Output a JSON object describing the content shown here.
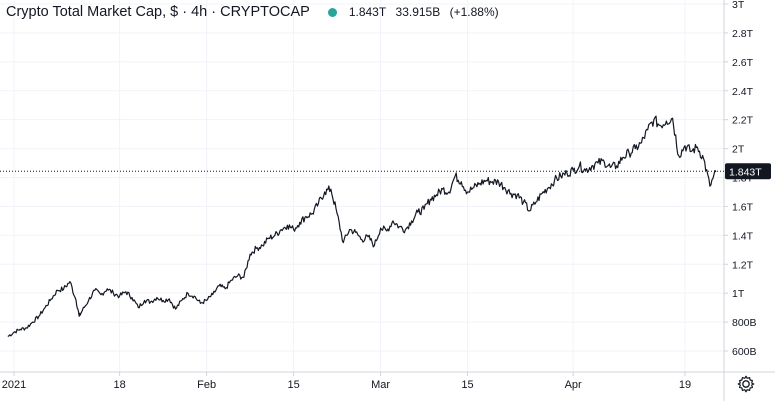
{
  "header": {
    "title": "Crypto Total Market Cap, $ · 4h · CRYPTOCAP",
    "status_color": "#26a69a",
    "last_value": "1.843T",
    "change_abs": "33.915B",
    "change_pct": "(+1.88%)"
  },
  "price_tag": {
    "label": "1.843T",
    "color": "#131722"
  },
  "settings_icon": "gear-icon",
  "colors": {
    "line": "#131722",
    "grid": "#f0f3fa",
    "axis_border": "#d1d4dc"
  },
  "chart_data": {
    "type": "line",
    "title": "Crypto Total Market Cap, $ · 4h · CRYPTOCAP",
    "xlabel": "",
    "ylabel": "",
    "x_tick_labels": [
      {
        "label": "2021",
        "date": "2021-01-01"
      },
      {
        "label": "18",
        "date": "2021-01-18"
      },
      {
        "label": "Feb",
        "date": "2021-02-01"
      },
      {
        "label": "15",
        "date": "2021-02-15"
      },
      {
        "label": "Mar",
        "date": "2021-03-01"
      },
      {
        "label": "15",
        "date": "2021-03-15"
      },
      {
        "label": "Apr",
        "date": "2021-04-01"
      },
      {
        "label": "19",
        "date": "2021-04-19"
      }
    ],
    "y_ticks": [
      {
        "label": "600B",
        "value": 0.6
      },
      {
        "label": "800B",
        "value": 0.8
      },
      {
        "label": "1T",
        "value": 1.0
      },
      {
        "label": "1.2T",
        "value": 1.2
      },
      {
        "label": "1.4T",
        "value": 1.4
      },
      {
        "label": "1.6T",
        "value": 1.6
      },
      {
        "label": "1.8T",
        "value": 1.8
      },
      {
        "label": "2T",
        "value": 2.0
      },
      {
        "label": "2.2T",
        "value": 2.2
      },
      {
        "label": "2.4T",
        "value": 2.4
      },
      {
        "label": "2.6T",
        "value": 2.6
      },
      {
        "label": "2.8T",
        "value": 2.8
      },
      {
        "label": "3T",
        "value": 3.0
      }
    ],
    "xlim": [
      "2020-12-31",
      "2021-04-26"
    ],
    "ylim": [
      0.5,
      3.0
    ],
    "grid": true,
    "series": [
      {
        "values": [
          [
            "2020-12-31",
            0.7
          ],
          [
            "2021-01-01",
            0.73
          ],
          [
            "2021-01-02",
            0.75
          ],
          [
            "2021-01-03",
            0.76
          ],
          [
            "2021-01-04",
            0.8
          ],
          [
            "2021-01-05",
            0.84
          ],
          [
            "2021-01-06",
            0.9
          ],
          [
            "2021-01-07",
            0.96
          ],
          [
            "2021-01-08",
            1.02
          ],
          [
            "2021-01-09",
            1.03
          ],
          [
            "2021-01-10",
            1.08
          ],
          [
            "2021-01-11",
            0.95
          ],
          [
            "2021-01-11.5",
            0.84
          ],
          [
            "2021-01-12",
            0.88
          ],
          [
            "2021-01-13",
            0.95
          ],
          [
            "2021-01-14",
            1.02
          ],
          [
            "2021-01-15",
            0.99
          ],
          [
            "2021-01-16",
            1.03
          ],
          [
            "2021-01-17",
            1.0
          ],
          [
            "2021-01-18",
            0.98
          ],
          [
            "2021-01-19",
            1.01
          ],
          [
            "2021-01-20",
            0.97
          ],
          [
            "2021-01-21",
            0.9
          ],
          [
            "2021-01-22",
            0.95
          ],
          [
            "2021-01-23",
            0.94
          ],
          [
            "2021-01-24",
            0.97
          ],
          [
            "2021-01-25",
            0.95
          ],
          [
            "2021-01-26",
            0.96
          ],
          [
            "2021-01-27",
            0.89
          ],
          [
            "2021-01-28",
            0.95
          ],
          [
            "2021-01-29",
            1.0
          ],
          [
            "2021-01-30",
            0.98
          ],
          [
            "2021-01-31",
            0.93
          ],
          [
            "2021-02-01",
            0.95
          ],
          [
            "2021-02-02",
            0.99
          ],
          [
            "2021-02-03",
            1.05
          ],
          [
            "2021-02-04",
            1.03
          ],
          [
            "2021-02-05",
            1.09
          ],
          [
            "2021-02-06",
            1.12
          ],
          [
            "2021-02-07",
            1.11
          ],
          [
            "2021-02-08",
            1.27
          ],
          [
            "2021-02-09",
            1.31
          ],
          [
            "2021-02-10",
            1.33
          ],
          [
            "2021-02-11",
            1.38
          ],
          [
            "2021-02-12",
            1.4
          ],
          [
            "2021-02-13",
            1.44
          ],
          [
            "2021-02-14",
            1.47
          ],
          [
            "2021-02-15",
            1.44
          ],
          [
            "2021-02-16",
            1.49
          ],
          [
            "2021-02-17",
            1.53
          ],
          [
            "2021-02-18",
            1.55
          ],
          [
            "2021-02-19",
            1.62
          ],
          [
            "2021-02-20",
            1.7
          ],
          [
            "2021-02-21",
            1.72
          ],
          [
            "2021-02-22",
            1.55
          ],
          [
            "2021-02-23",
            1.35
          ],
          [
            "2021-02-24",
            1.44
          ],
          [
            "2021-02-25",
            1.42
          ],
          [
            "2021-02-26",
            1.37
          ],
          [
            "2021-02-27",
            1.39
          ],
          [
            "2021-02-28",
            1.33
          ],
          [
            "2021-03-01",
            1.45
          ],
          [
            "2021-03-02",
            1.43
          ],
          [
            "2021-03-03",
            1.5
          ],
          [
            "2021-03-04",
            1.46
          ],
          [
            "2021-03-05",
            1.44
          ],
          [
            "2021-03-06",
            1.5
          ],
          [
            "2021-03-07",
            1.56
          ],
          [
            "2021-03-08",
            1.58
          ],
          [
            "2021-03-09",
            1.65
          ],
          [
            "2021-03-10",
            1.68
          ],
          [
            "2021-03-11",
            1.72
          ],
          [
            "2021-03-12",
            1.7
          ],
          [
            "2021-03-13",
            1.81
          ],
          [
            "2021-03-14",
            1.77
          ],
          [
            "2021-03-15",
            1.7
          ],
          [
            "2021-03-16",
            1.73
          ],
          [
            "2021-03-17",
            1.76
          ],
          [
            "2021-03-18",
            1.78
          ],
          [
            "2021-03-19",
            1.77
          ],
          [
            "2021-03-20",
            1.77
          ],
          [
            "2021-03-21",
            1.73
          ],
          [
            "2021-03-22",
            1.69
          ],
          [
            "2021-03-23",
            1.68
          ],
          [
            "2021-03-24",
            1.63
          ],
          [
            "2021-03-25",
            1.57
          ],
          [
            "2021-03-26",
            1.63
          ],
          [
            "2021-03-27",
            1.69
          ],
          [
            "2021-03-28",
            1.73
          ],
          [
            "2021-03-29",
            1.78
          ],
          [
            "2021-03-30",
            1.81
          ],
          [
            "2021-03-31",
            1.83
          ],
          [
            "2021-04-01",
            1.85
          ],
          [
            "2021-04-02",
            1.88
          ],
          [
            "2021-04-03",
            1.85
          ],
          [
            "2021-04-04",
            1.88
          ],
          [
            "2021-04-05",
            1.9
          ],
          [
            "2021-04-06",
            1.91
          ],
          [
            "2021-04-07",
            1.87
          ],
          [
            "2021-04-08",
            1.88
          ],
          [
            "2021-04-09",
            1.94
          ],
          [
            "2021-04-10",
            1.97
          ],
          [
            "2021-04-11",
            2.0
          ],
          [
            "2021-04-12",
            2.04
          ],
          [
            "2021-04-13",
            2.13
          ],
          [
            "2021-04-14",
            2.2
          ],
          [
            "2021-04-15",
            2.16
          ],
          [
            "2021-04-16",
            2.19
          ],
          [
            "2021-04-17",
            2.21
          ],
          [
            "2021-04-18",
            1.95
          ],
          [
            "2021-04-19",
            2.02
          ],
          [
            "2021-04-20",
            1.98
          ],
          [
            "2021-04-21",
            2.01
          ],
          [
            "2021-04-22",
            1.93
          ],
          [
            "2021-04-23",
            1.74
          ],
          [
            "2021-04-24",
            1.84
          ]
        ]
      }
    ],
    "last_value_line": 1.843
  }
}
